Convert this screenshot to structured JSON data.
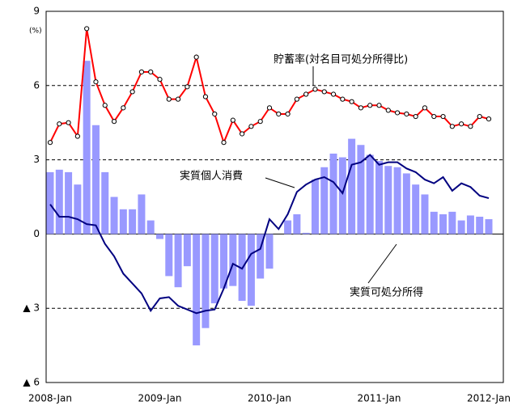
{
  "chart_data": {
    "type": "bar-line",
    "unit": "(%)",
    "categories": [
      "2008-Jan",
      null,
      null,
      null,
      null,
      null,
      null,
      null,
      null,
      null,
      null,
      null,
      "2009-Jan",
      null,
      null,
      null,
      null,
      null,
      null,
      null,
      null,
      null,
      null,
      null,
      "2010-Jan",
      null,
      null,
      null,
      null,
      null,
      null,
      null,
      null,
      null,
      null,
      null,
      "2011-Jan",
      null,
      null,
      null,
      null,
      null,
      null,
      null,
      null,
      null,
      null,
      null,
      "2012-Jan"
    ],
    "series": [
      {
        "name": "実質可処分所得",
        "kind": "bar",
        "color": "#9999ff",
        "values": [
          2.5,
          2.6,
          2.5,
          2.0,
          7.0,
          4.4,
          2.5,
          1.5,
          1.0,
          1.0,
          1.6,
          0.55,
          -0.2,
          -1.7,
          -2.15,
          -1.3,
          -4.5,
          -3.8,
          -2.8,
          -2.2,
          -2.1,
          -2.7,
          -2.9,
          -1.8,
          -1.4,
          0,
          0.55,
          0.8,
          0.05,
          2.2,
          2.7,
          3.25,
          3.1,
          3.85,
          3.6,
          3.2,
          2.95,
          2.75,
          2.7,
          2.45,
          2.0,
          1.6,
          0.9,
          0.8,
          0.9,
          0.55,
          0.75,
          0.7,
          0.6
        ]
      },
      {
        "name": "実質個人消費",
        "kind": "line",
        "color": "#000080",
        "values": [
          1.2,
          0.7,
          0.7,
          0.6,
          0.4,
          0.35,
          -0.4,
          -0.9,
          -1.6,
          -2.0,
          -2.4,
          -3.1,
          -2.6,
          -2.55,
          -2.9,
          -3.05,
          -3.2,
          -3.1,
          -3.05,
          -2.2,
          -1.2,
          -1.4,
          -0.8,
          -0.6,
          0.6,
          0.2,
          0.8,
          1.7,
          2.0,
          2.2,
          2.3,
          2.1,
          1.65,
          2.8,
          2.9,
          3.2,
          2.8,
          2.9,
          2.9,
          2.65,
          2.5,
          2.2,
          2.05,
          2.3,
          1.75,
          2.05,
          1.9,
          1.55,
          1.45
        ]
      },
      {
        "name": "貯蓄率(対名目可処分所得比)",
        "kind": "line-marker",
        "color": "#ff0000",
        "values": [
          3.7,
          4.45,
          4.5,
          3.95,
          8.3,
          6.15,
          5.2,
          4.55,
          5.1,
          5.75,
          6.55,
          6.55,
          6.25,
          5.45,
          5.45,
          5.95,
          7.15,
          5.55,
          4.85,
          3.7,
          4.6,
          4.05,
          4.35,
          4.55,
          5.1,
          4.85,
          4.85,
          5.45,
          5.65,
          5.85,
          5.75,
          5.65,
          5.45,
          5.35,
          5.1,
          5.2,
          5.2,
          5.0,
          4.9,
          4.85,
          4.75,
          5.1,
          4.75,
          4.75,
          4.35,
          4.45,
          4.35,
          4.75,
          4.65
        ]
      }
    ],
    "ylim": [
      -6,
      9
    ],
    "yticks": [
      {
        "value": -6,
        "label": "▲ 6"
      },
      {
        "value": -3,
        "label": "▲ 3"
      },
      0,
      3,
      6,
      9
    ],
    "grid": true
  }
}
